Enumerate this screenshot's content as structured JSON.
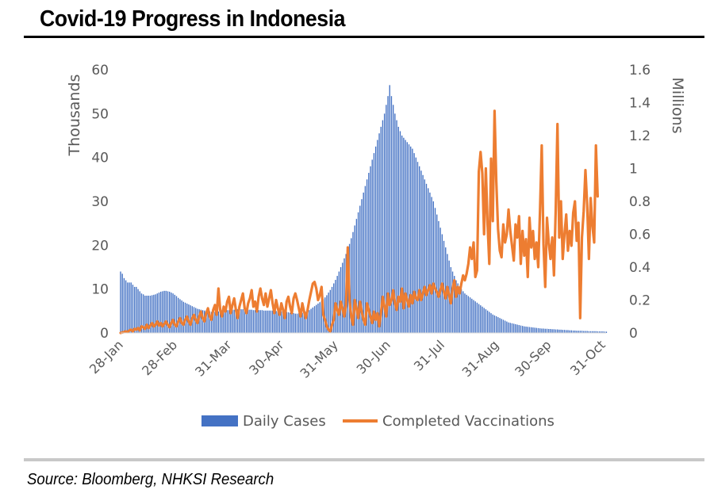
{
  "title": "Covid-19 Progress in Indonesia",
  "source": "Source: Bloomberg, NHKSI Research",
  "colors": {
    "cases": "#4472c4",
    "vaccinations": "#ed7d31",
    "axis_text": "#595959",
    "gridline": "#d9d9d9"
  },
  "chart_data": {
    "type": "bar",
    "title": "Covid-19 Progress in Indonesia",
    "x_axis": {
      "tick_labels": [
        "28-Jan",
        "28-Feb",
        "31-Mar",
        "30-Apr",
        "31-May",
        "30-Jun",
        "31-Jul",
        "31-Aug",
        "30-Sep",
        "31-Oct"
      ],
      "range": [
        "2021-01-28",
        "2021-10-31"
      ]
    },
    "y_left": {
      "label": "Thousands",
      "ticks": [
        "0",
        "10",
        "20",
        "30",
        "40",
        "50",
        "60"
      ],
      "range": [
        0,
        60
      ]
    },
    "y_right": {
      "label": "Millions",
      "ticks": [
        "0",
        "0.2",
        "0.4",
        "0.6",
        "0.8",
        "1",
        "1.2",
        "1.4",
        "1.6"
      ],
      "range": [
        0,
        1.6
      ]
    },
    "legend": {
      "position": "bottom",
      "entries": [
        "Daily Cases",
        "Completed Vaccinations"
      ]
    },
    "grid": false,
    "series": [
      {
        "name": "Daily Cases",
        "type": "bar",
        "axis": "left",
        "x_start": "2021-01-28",
        "step": "1 day",
        "values": [
          14,
          13.5,
          12.5,
          12,
          11.5,
          11.5,
          11.5,
          11,
          10.5,
          10.5,
          10,
          9.5,
          9,
          8.8,
          8.5,
          8.5,
          8.5,
          8.5,
          8.6,
          8.7,
          8.8,
          9,
          9.2,
          9.4,
          9.5,
          9.6,
          9.6,
          9.5,
          9.4,
          9.2,
          9,
          8.7,
          8.4,
          8,
          7.7,
          7.4,
          7.1,
          6.9,
          6.7,
          6.5,
          6.3,
          6.1,
          5.9,
          5.7,
          5.5,
          5.4,
          5.3,
          5.2,
          5.1,
          5,
          4.9,
          4.9,
          4.8,
          4.8,
          4.8,
          4.9,
          4.9,
          5,
          5,
          5.1,
          5.1,
          5.2,
          5.2,
          5.3,
          5.3,
          5.3,
          5.4,
          5.4,
          5.4,
          5.4,
          5.4,
          5.4,
          5.4,
          5.3,
          5.3,
          5.3,
          5.2,
          5.2,
          5.2,
          5.2,
          5.2,
          5.2,
          5.1,
          5.1,
          5.1,
          5.1,
          5.1,
          5.1,
          5.1,
          5,
          5,
          5,
          4.9,
          4.9,
          4.8,
          4.8,
          4.7,
          4.6,
          4.5,
          4.5,
          4.4,
          4.4,
          4.5,
          4.5,
          4.6,
          4.7,
          4.8,
          5,
          5.2,
          5.5,
          5.8,
          6.1,
          6.4,
          6.7,
          7,
          7.3,
          7.7,
          8.1,
          8.6,
          9.2,
          9.8,
          10.5,
          11.3,
          12.1,
          13,
          14,
          15,
          16,
          17,
          18,
          19,
          20.3,
          21.6,
          23,
          24.5,
          26,
          27.5,
          29,
          30.5,
          32,
          33.5,
          35,
          36.5,
          38,
          39.5,
          41,
          42.5,
          44,
          45.5,
          47,
          48.5,
          50,
          52,
          54,
          56.5,
          54,
          52,
          50,
          48.5,
          47,
          46,
          45,
          44.5,
          44,
          43.5,
          43,
          42.5,
          42,
          41,
          40,
          39,
          38,
          37,
          36,
          35,
          34,
          33,
          32,
          31,
          30,
          28.5,
          27,
          25.5,
          24,
          22.5,
          21,
          19.5,
          18,
          16.5,
          15,
          14,
          13,
          12,
          11.3,
          10.6,
          10,
          9.5,
          9,
          8.7,
          8.4,
          8.1,
          7.8,
          7.5,
          7.2,
          6.9,
          6.6,
          6.3,
          6,
          5.7,
          5.4,
          5.1,
          4.8,
          4.5,
          4.2,
          4,
          3.8,
          3.6,
          3.4,
          3.2,
          3,
          2.8,
          2.6,
          2.4,
          2.3,
          2.2,
          2.1,
          2,
          1.9,
          1.8,
          1.7,
          1.6,
          1.5,
          1.45,
          1.4,
          1.35,
          1.3,
          1.25,
          1.2,
          1.15,
          1.1,
          1.05,
          1,
          1,
          0.95,
          0.95,
          0.9,
          0.9,
          0.85,
          0.85,
          0.8,
          0.8,
          0.75,
          0.75,
          0.7,
          0.7,
          0.65,
          0.65,
          0.6,
          0.6,
          0.55,
          0.55,
          0.5,
          0.5,
          0.5,
          0.5,
          0.45,
          0.45,
          0.45,
          0.4,
          0.4,
          0.4,
          0.4,
          0.4,
          0.35,
          0.35,
          0.35,
          0.35,
          0.3,
          0.3
        ]
      },
      {
        "name": "Completed Vaccinations",
        "type": "line",
        "axis": "right",
        "x_start": "2021-01-28",
        "step": "1 day",
        "values": [
          0,
          0.003,
          0.005,
          0.01,
          0.005,
          0.015,
          0.02,
          0.01,
          0.025,
          0.02,
          0.03,
          0.015,
          0.04,
          0.035,
          0.025,
          0.05,
          0.03,
          0.045,
          0.06,
          0.04,
          0.05,
          0.07,
          0.045,
          0.06,
          0.04,
          0.055,
          0.07,
          0.05,
          0.035,
          0.06,
          0.08,
          0.05,
          0.04,
          0.07,
          0.09,
          0.06,
          0.05,
          0.08,
          0.1,
          0.07,
          0.05,
          0.09,
          0.11,
          0.08,
          0.06,
          0.1,
          0.13,
          0.09,
          0.07,
          0.12,
          0.15,
          0.1,
          0.08,
          0.14,
          0.17,
          0.11,
          0.27,
          0.14,
          0.1,
          0.16,
          0.13,
          0.19,
          0.22,
          0.12,
          0.17,
          0.21,
          0.14,
          0.09,
          0.16,
          0.2,
          0.24,
          0.15,
          0.12,
          0.18,
          0.21,
          0.26,
          0.16,
          0.19,
          0.13,
          0.22,
          0.27,
          0.21,
          0.17,
          0.24,
          0.16,
          0.21,
          0.26,
          0.18,
          0.12,
          0.2,
          0.15,
          0.11,
          0.18,
          0.14,
          0.09,
          0.19,
          0.22,
          0.16,
          0.12,
          0.21,
          0.24,
          0.2,
          0.15,
          0.1,
          0.18,
          0.13,
          0.09,
          0.14,
          0.2,
          0.25,
          0.3,
          0.31,
          0.27,
          0.2,
          0.23,
          0.28,
          0.11,
          0.08,
          0.04,
          0.02,
          0.01,
          0.05,
          0.08,
          0.18,
          0.14,
          0.11,
          0.19,
          0.15,
          0.1,
          0.17,
          0.52,
          0.2,
          0.1,
          0.05,
          0.2,
          0.15,
          0.09,
          0.19,
          0.13,
          0.08,
          0.05,
          0.18,
          0.14,
          0.1,
          0.06,
          0.13,
          0.08,
          0.12,
          0.04,
          0.12,
          0.22,
          0.16,
          0.1,
          0.24,
          0.17,
          0.2,
          0.26,
          0.18,
          0.14,
          0.22,
          0.19,
          0.27,
          0.15,
          0.24,
          0.2,
          0.16,
          0.23,
          0.18,
          0.25,
          0.21,
          0.2,
          0.26,
          0.2,
          0.24,
          0.28,
          0.23,
          0.26,
          0.29,
          0.24,
          0.3,
          0.27,
          0.25,
          0.22,
          0.26,
          0.3,
          0.25,
          0.21,
          0.28,
          0.23,
          0.18,
          0.27,
          0.32,
          0.22,
          0.28,
          0.24,
          0.3,
          0.35,
          0.32,
          0.36,
          0.42,
          0.52,
          0.45,
          0.55,
          0.34,
          0.38,
          0.98,
          1.1,
          0.97,
          0.6,
          1,
          0.66,
          0.42,
          1.06,
          0.68,
          1.35,
          0.92,
          0.63,
          0.5,
          0.46,
          0.66,
          0.55,
          0.6,
          0.75,
          0.62,
          0.53,
          0.44,
          0.66,
          0.58,
          0.71,
          0.42,
          0.62,
          0.47,
          0.57,
          0.34,
          0.7,
          0.52,
          0.62,
          0.45,
          0.55,
          0.4,
          0.74,
          1.14,
          0.54,
          0.28,
          0.7,
          0.55,
          0.45,
          0.58,
          0.35,
          0.75,
          1.27,
          0.58,
          0.8,
          0.45,
          0.6,
          0.72,
          0.5,
          0.62,
          0.53,
          0.73,
          0.8,
          0.56,
          0.67,
          0.09,
          0.58,
          0.74,
          0.99,
          0.78,
          0.45,
          0.82,
          0.65,
          0.55,
          1.14,
          0.83
        ]
      }
    ]
  }
}
